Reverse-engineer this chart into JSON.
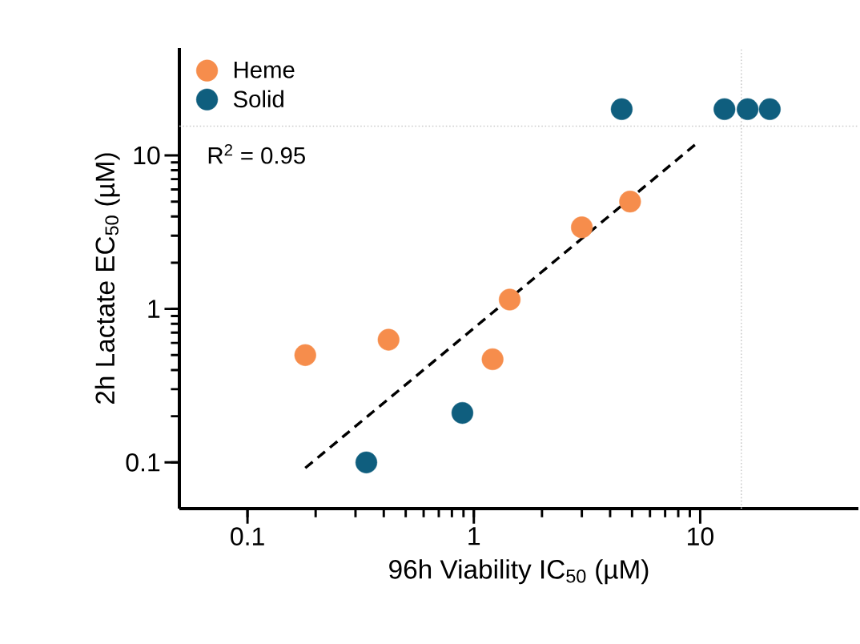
{
  "chart_data": {
    "type": "scatter",
    "xlabel": "96h Viability IC$_{50}$ (µM)",
    "ylabel": "2h Lactate EC$_{50}$ (µM)",
    "log": "xy",
    "xlim": [
      0.05,
      50
    ],
    "ylim": [
      0.05,
      50
    ],
    "xticks": [
      0.1,
      1,
      10
    ],
    "yticks": [
      0.1,
      1,
      10
    ],
    "grid": false,
    "legend": "top left",
    "marker": "circle",
    "annotations": [
      "R$^{2}$ = 0.95"
    ],
    "ref_lines": [
      {
        "axis": "x",
        "value": 15.2,
        "color": "#cccccc",
        "line_style": "dotted"
      },
      {
        "axis": "y",
        "value": 15.5,
        "color": "#cccccc",
        "line_style": "dotted"
      }
    ],
    "series": [
      {
        "name": "Heme",
        "color": "#f68d4c",
        "x": [
          0.18,
          0.42,
          1.21,
          1.44,
          3.0,
          4.9
        ],
        "values": [
          0.5,
          0.63,
          0.47,
          1.15,
          3.4,
          5.0
        ]
      },
      {
        "name": "Solid",
        "color": "#0f5e7e",
        "x": [
          0.335,
          0.89,
          4.5,
          12.8,
          16.2,
          20.3
        ],
        "values": [
          0.1,
          0.21,
          20,
          20,
          20,
          20
        ]
      },
      {
        "type": "line",
        "color": "#000000",
        "line_style": "dashed",
        "marker": "none",
        "x": [
          0.18,
          9.8
        ],
        "values": [
          0.092,
          12.2
        ]
      }
    ]
  }
}
